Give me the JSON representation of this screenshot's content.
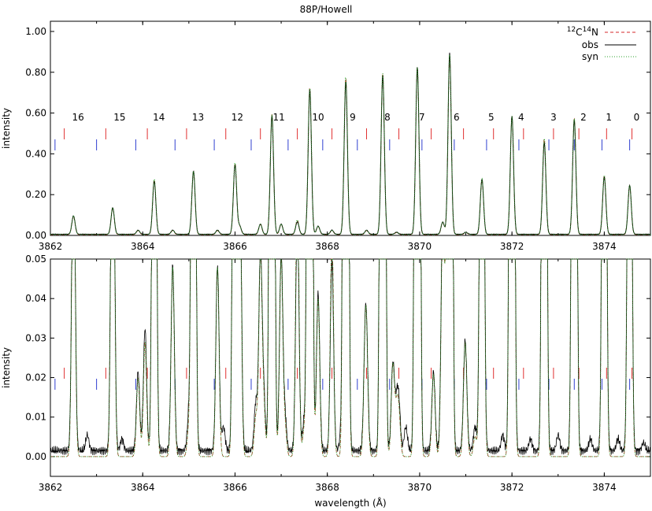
{
  "chart_data": [
    {
      "type": "line",
      "title": "88P/Howell",
      "xlabel": "",
      "ylabel": "intensity",
      "xlim": [
        3862,
        3875
      ],
      "ylim": [
        0,
        1.05
      ],
      "x_ticks": [
        "3862",
        "3864",
        "3866",
        "3868",
        "3870",
        "3872",
        "3874"
      ],
      "y_ticks": [
        "0.00",
        "0.20",
        "0.40",
        "0.60",
        "0.80",
        "1.00"
      ],
      "grid": false,
      "legend": {
        "placement": "top-right",
        "entries": [
          {
            "label_main": "C",
            "sup1": "12",
            "sup2": "14",
            "label_end": "N",
            "style": "dashed",
            "color": "#d62728"
          },
          {
            "label": "obs",
            "style": "solid",
            "color": "#000000"
          },
          {
            "label": "syn",
            "style": "dotted",
            "color": "#2ca02c"
          }
        ]
      },
      "line_numbers": [
        "16",
        "15",
        "14",
        "13",
        "12",
        "11",
        "10",
        "9",
        "8",
        "7",
        "6",
        "5",
        "4",
        "3",
        "2",
        "1",
        "0"
      ],
      "line_number_x": [
        3862.6,
        3863.5,
        3864.35,
        3865.2,
        3866.05,
        3866.95,
        3867.8,
        3868.55,
        3869.3,
        3870.05,
        3870.8,
        3871.55,
        3872.2,
        3872.9,
        3873.55,
        3874.1,
        3874.7
      ],
      "red_markers_x": [
        3862.3,
        3863.2,
        3864.1,
        3864.95,
        3865.8,
        3866.55,
        3867.35,
        3868.1,
        3868.85,
        3869.55,
        3870.25,
        3870.95,
        3871.6,
        3872.25,
        3872.9,
        3873.45,
        3874.05,
        3874.6
      ],
      "blue_markers_x": [
        3862.1,
        3863.0,
        3863.85,
        3864.7,
        3865.55,
        3866.35,
        3867.15,
        3867.9,
        3868.65,
        3869.35,
        3870.05,
        3870.75,
        3871.45,
        3872.15,
        3872.8,
        3873.35,
        3873.95,
        3874.55
      ],
      "peaks": {
        "obs": [
          [
            3862.5,
            0.09
          ],
          [
            3863.35,
            0.13
          ],
          [
            3863.9,
            0.02
          ],
          [
            3864.25,
            0.26
          ],
          [
            3864.65,
            0.02
          ],
          [
            3865.1,
            0.31
          ],
          [
            3865.62,
            0.02
          ],
          [
            3866.0,
            0.34
          ],
          [
            3866.1,
            0.04
          ],
          [
            3866.55,
            0.05
          ],
          [
            3866.8,
            0.58
          ],
          [
            3867.0,
            0.05
          ],
          [
            3867.35,
            0.06
          ],
          [
            3867.62,
            0.71
          ],
          [
            3867.8,
            0.04
          ],
          [
            3868.1,
            0.02
          ],
          [
            3868.4,
            0.75
          ],
          [
            3868.85,
            0.02
          ],
          [
            3869.2,
            0.78
          ],
          [
            3869.5,
            0.01
          ],
          [
            3869.95,
            0.82
          ],
          [
            3870.5,
            0.06
          ],
          [
            3870.65,
            0.89
          ],
          [
            3871.0,
            0.01
          ],
          [
            3871.35,
            0.27
          ],
          [
            3872.0,
            0.58
          ],
          [
            3872.7,
            0.45
          ],
          [
            3873.35,
            0.56
          ],
          [
            3874.0,
            0.28
          ],
          [
            3874.55,
            0.24
          ]
        ],
        "syn": [
          [
            3862.5,
            0.09
          ],
          [
            3863.35,
            0.13
          ],
          [
            3863.9,
            0.02
          ],
          [
            3864.25,
            0.27
          ],
          [
            3864.65,
            0.02
          ],
          [
            3865.1,
            0.31
          ],
          [
            3865.62,
            0.02
          ],
          [
            3866.0,
            0.35
          ],
          [
            3866.1,
            0.04
          ],
          [
            3866.55,
            0.05
          ],
          [
            3866.8,
            0.59
          ],
          [
            3867.0,
            0.05
          ],
          [
            3867.35,
            0.07
          ],
          [
            3867.62,
            0.72
          ],
          [
            3867.8,
            0.04
          ],
          [
            3868.1,
            0.02
          ],
          [
            3868.4,
            0.77
          ],
          [
            3868.85,
            0.02
          ],
          [
            3869.2,
            0.79
          ],
          [
            3869.5,
            0.01
          ],
          [
            3869.95,
            0.82
          ],
          [
            3870.5,
            0.06
          ],
          [
            3870.65,
            0.88
          ],
          [
            3871.0,
            0.01
          ],
          [
            3871.35,
            0.27
          ],
          [
            3872.0,
            0.58
          ],
          [
            3872.7,
            0.47
          ],
          [
            3873.35,
            0.57
          ],
          [
            3874.0,
            0.29
          ],
          [
            3874.55,
            0.24
          ]
        ]
      }
    },
    {
      "type": "line",
      "title": "",
      "xlabel": "wavelength (Å)",
      "ylabel": "intensity",
      "xlim": [
        3862,
        3875
      ],
      "ylim": [
        -0.005,
        0.05
      ],
      "x_ticks": [
        "3862",
        "3864",
        "3866",
        "3868",
        "3870",
        "3872",
        "3874"
      ],
      "y_ticks": [
        "0.00",
        "0.01",
        "0.02",
        "0.03",
        "0.04",
        "0.05"
      ],
      "grid": false,
      "red_markers_x": [
        3862.3,
        3863.2,
        3864.1,
        3864.95,
        3865.8,
        3866.55,
        3867.35,
        3868.1,
        3868.85,
        3869.55,
        3870.25,
        3870.95,
        3871.6,
        3872.25,
        3872.9,
        3873.45,
        3874.05,
        3874.6
      ],
      "blue_markers_x": [
        3862.1,
        3863.0,
        3863.85,
        3864.7,
        3865.55,
        3866.35,
        3867.15,
        3867.9,
        3868.65,
        3869.35,
        3870.05,
        3870.75,
        3871.45,
        3872.15,
        3872.8,
        3873.35,
        3873.95,
        3874.55
      ],
      "weak_peaks": {
        "obs": [
          [
            3862.8,
            0.004
          ],
          [
            3863.55,
            0.003
          ],
          [
            3864.05,
            0.031
          ],
          [
            3864.65,
            0.027
          ],
          [
            3865.0,
            0.009
          ],
          [
            3865.62,
            0.027
          ],
          [
            3865.75,
            0.006
          ],
          [
            3866.1,
            0.046
          ],
          [
            3866.45,
            0.012
          ],
          [
            3866.62,
            0.014
          ],
          [
            3867.08,
            0.009
          ],
          [
            3867.5,
            0.008
          ],
          [
            3868.1,
            0.028
          ],
          [
            3868.3,
            0.004
          ],
          [
            3868.82,
            0.021
          ],
          [
            3869.42,
            0.022
          ],
          [
            3869.55,
            0.011
          ],
          [
            3869.7,
            0.006
          ],
          [
            3870.3,
            0.02
          ],
          [
            3870.55,
            0.014
          ],
          [
            3870.98,
            0.019
          ],
          [
            3871.2,
            0.006
          ],
          [
            3871.8,
            0.004
          ],
          [
            3872.4,
            0.003
          ],
          [
            3873.0,
            0.004
          ],
          [
            3873.7,
            0.003
          ],
          [
            3874.3,
            0.003
          ],
          [
            3874.85,
            0.002
          ]
        ],
        "syn": [
          [
            3864.05,
            0.029
          ],
          [
            3864.65,
            0.028
          ],
          [
            3865.0,
            0.007
          ],
          [
            3865.62,
            0.028
          ],
          [
            3866.1,
            0.045
          ],
          [
            3866.45,
            0.01
          ],
          [
            3866.62,
            0.013
          ],
          [
            3867.08,
            0.008
          ],
          [
            3867.5,
            0.007
          ],
          [
            3868.1,
            0.036
          ],
          [
            3868.82,
            0.022
          ],
          [
            3869.42,
            0.023
          ],
          [
            3869.55,
            0.01
          ],
          [
            3870.3,
            0.021
          ],
          [
            3870.55,
            0.013
          ],
          [
            3870.98,
            0.02
          ],
          [
            3871.2,
            0.005
          ]
        ]
      }
    }
  ]
}
